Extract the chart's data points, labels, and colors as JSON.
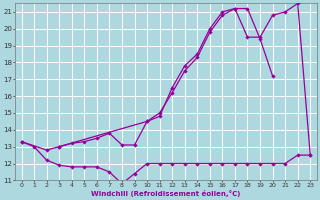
{
  "xlabel": "Windchill (Refroidissement éolien,°C)",
  "bg_color": "#aed8e0",
  "grid_color": "#ffffff",
  "line_color": "#990099",
  "xlim": [
    -0.5,
    23.5
  ],
  "ylim": [
    11.0,
    21.5
  ],
  "yticks": [
    11,
    12,
    13,
    14,
    15,
    16,
    17,
    18,
    19,
    20,
    21
  ],
  "xticks": [
    0,
    1,
    2,
    3,
    4,
    5,
    6,
    7,
    8,
    9,
    10,
    11,
    12,
    13,
    14,
    15,
    16,
    17,
    18,
    19,
    20,
    21,
    22,
    23
  ],
  "line1_x": [
    0,
    1,
    2,
    3,
    4,
    5,
    6,
    7,
    8,
    9,
    10,
    11,
    12,
    13,
    14,
    15,
    16,
    17,
    18,
    19,
    20,
    21,
    22,
    23
  ],
  "line1_y": [
    13.3,
    13.0,
    12.2,
    11.9,
    11.8,
    11.8,
    11.8,
    11.5,
    10.8,
    11.4,
    12.0,
    12.0,
    12.0,
    12.0,
    12.0,
    12.0,
    12.0,
    12.0,
    12.0,
    12.0,
    12.0,
    12.0,
    12.5,
    12.5
  ],
  "line2_x": [
    0,
    2,
    3,
    10,
    11,
    12,
    13,
    14,
    15,
    16,
    17,
    18,
    19,
    20
  ],
  "line2_y": [
    13.3,
    12.8,
    13.0,
    14.5,
    14.8,
    16.5,
    17.8,
    18.5,
    20.0,
    21.0,
    21.2,
    21.2,
    19.4,
    17.2
  ],
  "line3_x": [
    3,
    4,
    5,
    6,
    7,
    8,
    9,
    10,
    11,
    12,
    13,
    14,
    15,
    16,
    17,
    18,
    19,
    20,
    21,
    22,
    23
  ],
  "line3_y": [
    13.0,
    13.2,
    13.3,
    13.5,
    13.8,
    13.1,
    13.1,
    14.5,
    15.0,
    16.2,
    17.5,
    18.3,
    19.8,
    20.8,
    21.2,
    19.5,
    19.5,
    20.8,
    21.0,
    21.5,
    12.5
  ]
}
